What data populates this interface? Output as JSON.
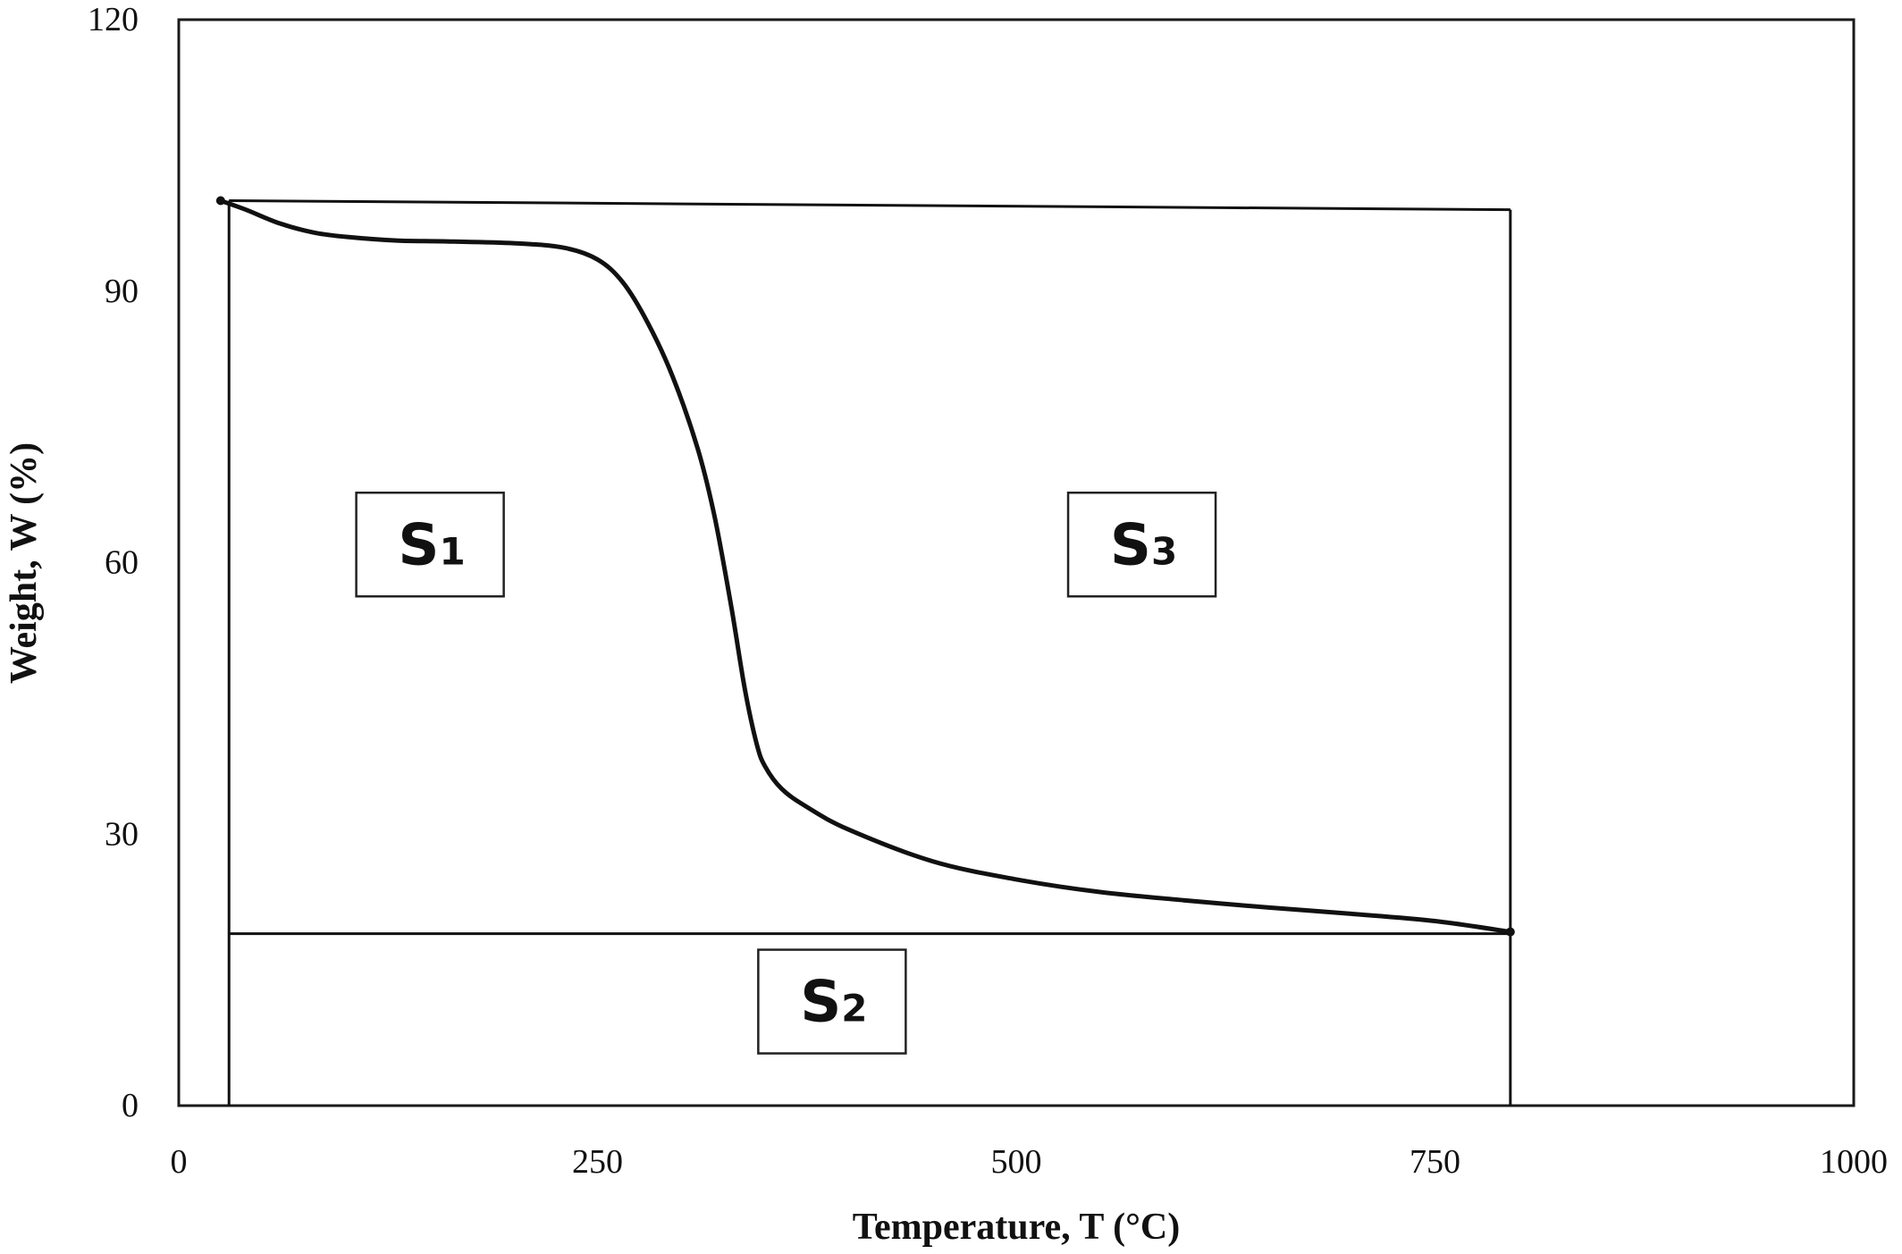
{
  "chart_data": {
    "type": "line",
    "title": "",
    "xlabel": "Temperature, T (°C)",
    "ylabel": "Weight, W (%)",
    "xlim": [
      0,
      1000
    ],
    "ylim": [
      0,
      120
    ],
    "xticks": [
      "0",
      "250",
      "500",
      "750",
      "1000"
    ],
    "yticks": [
      "0",
      "30",
      "60",
      "90",
      "120"
    ],
    "grid": false,
    "series": [
      {
        "x": [
          25,
          40,
          60,
          80,
          100,
          130,
          160,
          200,
          230,
          250,
          265,
          280,
          295,
          310,
          320,
          330,
          338,
          345,
          350,
          360,
          375,
          400,
          450,
          500,
          550,
          600,
          650,
          700,
          750,
          795
        ],
        "y": [
          100,
          99,
          97.5,
          96.5,
          96,
          95.6,
          95.5,
          95.3,
          94.8,
          93.5,
          91.0,
          86.5,
          80.5,
          72.5,
          65.0,
          55.0,
          46.0,
          40.0,
          37.5,
          35.0,
          33.0,
          30.5,
          27.0,
          25.0,
          23.6,
          22.7,
          21.9,
          21.2,
          20.4,
          19.2
        ]
      }
    ],
    "reference_lines": {
      "x_left": 30,
      "x_right": 795,
      "y_top": 99,
      "y_bottom": 19
    },
    "annotations": [
      {
        "main": "S",
        "sub": "1",
        "x": 150,
        "y": 62
      },
      {
        "main": "S",
        "sub": "2",
        "x": 390,
        "y": 11.5
      },
      {
        "main": "S",
        "sub": "3",
        "x": 575,
        "y": 62
      }
    ]
  }
}
